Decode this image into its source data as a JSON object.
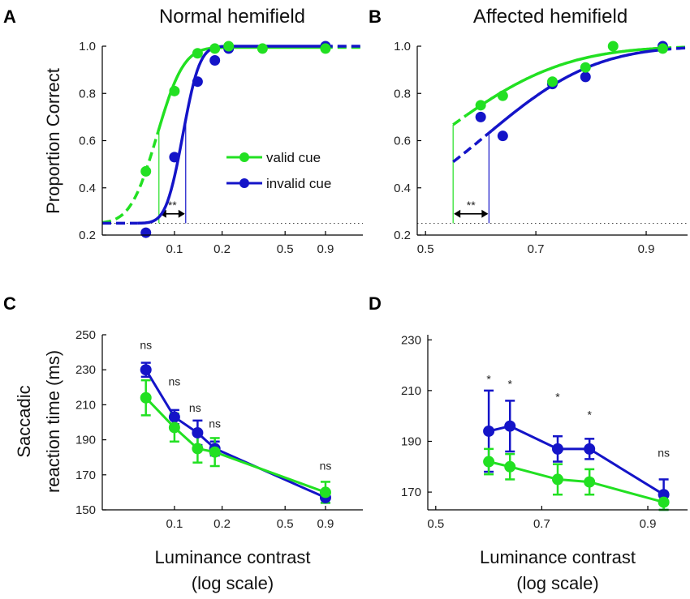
{
  "colors": {
    "valid": "#22e022",
    "invalid": "#1414c8",
    "axis": "#000000"
  },
  "legend": {
    "valid_label": "valid cue",
    "invalid_label": "invalid cue"
  },
  "chart_data": [
    {
      "id": "A",
      "type": "scatter",
      "panel_letter": "A",
      "title": "Normal hemifield",
      "ylabel": "Proportion Correct",
      "xscale": "log",
      "xlim": [
        0.035,
        1.55
      ],
      "ylim": [
        0.2,
        1.0
      ],
      "xticks": [
        0.1,
        0.2,
        0.5,
        0.9
      ],
      "xtick_labels": [
        "0.1",
        "0.2",
        "0.5",
        "0.9"
      ],
      "yticks": [
        0.2,
        0.4,
        0.6,
        0.8,
        1.0
      ],
      "ytick_labels": [
        "0.2",
        "0.4",
        "0.6",
        "0.8",
        "1.0"
      ],
      "chance_level": 0.25,
      "threshold_label": "**",
      "thresholds": {
        "valid": 0.0798,
        "invalid": 0.1178
      },
      "series": [
        {
          "name": "valid cue",
          "key": "valid",
          "x": [
            0.066,
            0.1,
            0.14,
            0.18,
            0.22,
            0.36,
            0.9
          ],
          "y": [
            0.47,
            0.81,
            0.97,
            0.99,
            1.0,
            0.99,
            0.99
          ],
          "fit": {
            "mu": 0.0776,
            "sigma": 0.0236,
            "lapse": 0.005,
            "solid_from": 0.0798
          }
        },
        {
          "name": "invalid cue",
          "key": "invalid",
          "x": [
            0.066,
            0.1,
            0.14,
            0.18,
            0.22,
            0.9
          ],
          "y": [
            0.21,
            0.53,
            0.85,
            0.94,
            0.99,
            1.0
          ],
          "fit": {
            "mu": 0.113,
            "sigma": 0.0217,
            "lapse": 0.0,
            "solid_from": 0.0596
          }
        }
      ]
    },
    {
      "id": "B",
      "type": "scatter",
      "panel_letter": "B",
      "title": "Affected hemifield",
      "ylabel": "",
      "xscale": "linear",
      "xlim": [
        0.485,
        0.975
      ],
      "ylim": [
        0.2,
        1.0
      ],
      "xticks": [
        0.5,
        0.7,
        0.9
      ],
      "xtick_labels": [
        "0.5",
        "0.7",
        "0.9"
      ],
      "yticks": [
        0.2,
        0.4,
        0.6,
        0.8,
        1.0
      ],
      "ytick_labels": [
        "0.2",
        "0.4",
        "0.6",
        "0.8",
        "1.0"
      ],
      "chance_level": 0.25,
      "threshold_label": "**",
      "thresholds": {
        "valid": 0.55,
        "invalid": 0.615
      },
      "series": [
        {
          "name": "valid cue",
          "key": "valid",
          "x": [
            0.6,
            0.64,
            0.73,
            0.79,
            0.84,
            0.93
          ],
          "y": [
            0.75,
            0.79,
            0.85,
            0.91,
            1.0,
            0.99
          ],
          "fit": {
            "mu": 0.525,
            "sigma": 0.176,
            "lapse": 0.0,
            "solid_from": 0.575,
            "draw_from": 0.55
          }
        },
        {
          "name": "invalid cue",
          "key": "invalid",
          "x": [
            0.6,
            0.64,
            0.73,
            0.79,
            0.93
          ],
          "y": [
            0.7,
            0.62,
            0.84,
            0.87,
            1.0
          ],
          "fit": {
            "mu": 0.611,
            "sigma": 0.155,
            "lapse": 0.0,
            "solid_from": 0.62,
            "draw_from": 0.55
          }
        }
      ]
    },
    {
      "id": "C",
      "type": "line",
      "panel_letter": "C",
      "title": "",
      "ylabel_lines": [
        "Saccadic",
        "reaction time (ms)"
      ],
      "xlabel_lines": [
        "Luminance contrast",
        "(log scale)"
      ],
      "xscale": "log",
      "xlim": [
        0.035,
        1.55
      ],
      "ylim": [
        150,
        250
      ],
      "xticks": [
        0.1,
        0.2,
        0.5,
        0.9
      ],
      "xtick_labels": [
        "0.1",
        "0.2",
        "0.5",
        "0.9"
      ],
      "yticks": [
        150,
        170,
        190,
        210,
        230,
        250
      ],
      "ytick_labels": [
        "150",
        "170",
        "190",
        "210",
        "230",
        "250"
      ],
      "annotations": [
        {
          "x": 0.066,
          "y": 242,
          "text": "ns"
        },
        {
          "x": 0.1,
          "y": 221,
          "text": "ns"
        },
        {
          "x": 0.135,
          "y": 206,
          "text": "ns"
        },
        {
          "x": 0.18,
          "y": 197,
          "text": "ns"
        },
        {
          "x": 0.9,
          "y": 173,
          "text": "ns"
        }
      ],
      "series": [
        {
          "name": "valid cue",
          "key": "valid",
          "x": [
            0.066,
            0.1,
            0.14,
            0.18,
            0.9
          ],
          "y": [
            214,
            197,
            185,
            183,
            160
          ],
          "err": [
            10,
            8,
            8,
            8,
            6
          ]
        },
        {
          "name": "invalid cue",
          "key": "invalid",
          "x": [
            0.066,
            0.1,
            0.14,
            0.18,
            0.9
          ],
          "y": [
            230,
            203,
            194,
            185,
            157
          ],
          "err": [
            4,
            4,
            7,
            4,
            3
          ]
        }
      ]
    },
    {
      "id": "D",
      "type": "line",
      "panel_letter": "D",
      "title": "",
      "ylabel_lines": [],
      "xlabel_lines": [
        "Luminance contrast",
        "(log scale)"
      ],
      "xscale": "linear",
      "xlim": [
        0.485,
        0.975
      ],
      "ylim": [
        163,
        232
      ],
      "xticks": [
        0.5,
        0.7,
        0.9
      ],
      "xtick_labels": [
        "0.5",
        "0.7",
        "0.9"
      ],
      "yticks": [
        170,
        190,
        210,
        230
      ],
      "ytick_labels": [
        "170",
        "190",
        "210",
        "230"
      ],
      "annotations": [
        {
          "x": 0.6,
          "y": 213,
          "text": "*"
        },
        {
          "x": 0.64,
          "y": 211,
          "text": "*"
        },
        {
          "x": 0.73,
          "y": 206,
          "text": "*"
        },
        {
          "x": 0.79,
          "y": 199,
          "text": "*"
        },
        {
          "x": 0.93,
          "y": 184,
          "text": "ns"
        }
      ],
      "series": [
        {
          "name": "valid cue",
          "key": "valid",
          "x": [
            0.6,
            0.64,
            0.73,
            0.79,
            0.93
          ],
          "y": [
            182,
            180,
            175,
            174,
            166
          ],
          "err": [
            5,
            5,
            6,
            5,
            3
          ]
        },
        {
          "name": "invalid cue",
          "key": "invalid",
          "x": [
            0.6,
            0.64,
            0.73,
            0.79,
            0.93
          ],
          "y": [
            194,
            196,
            187,
            187,
            169
          ],
          "err": [
            16,
            10,
            5,
            4,
            6
          ]
        }
      ]
    }
  ]
}
